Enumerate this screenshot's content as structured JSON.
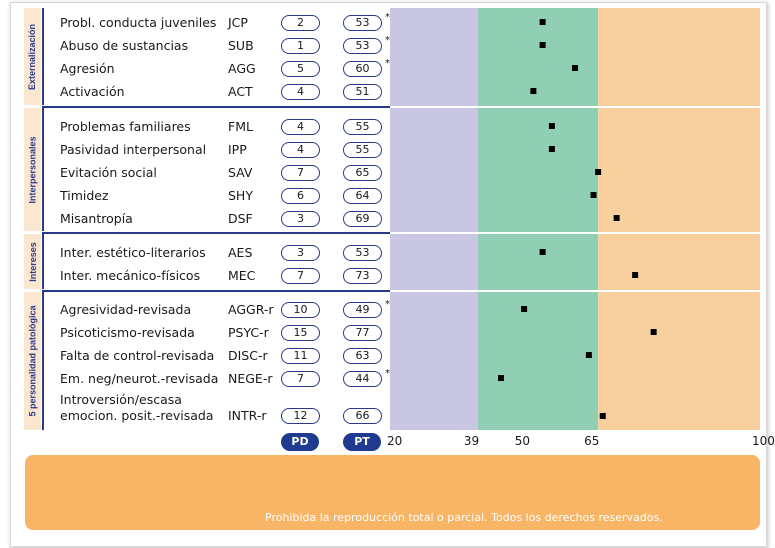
{
  "chart_data": {
    "type": "scatter",
    "title": "",
    "axis": {
      "min": 20,
      "max": 100,
      "ticks": [
        {
          "value": 20,
          "label": "20"
        },
        {
          "value": 39,
          "label": "39"
        },
        {
          "value": 50,
          "label": "50"
        },
        {
          "value": 65,
          "label": "65"
        },
        {
          "value": 100,
          "label": "100"
        }
      ]
    },
    "bands": [
      {
        "from": 20,
        "to": 39,
        "color": "#c9c6e3"
      },
      {
        "from": 39,
        "to": 65,
        "color": "#91cfb4"
      },
      {
        "from": 65,
        "to": 100,
        "color": "#f8d0a0"
      }
    ],
    "columns": {
      "pd": "PD",
      "pt": "PT"
    },
    "sections": [
      {
        "label": "Externalización",
        "rows": [
          {
            "name": "Probl. conducta juveniles",
            "code": "JCP",
            "pd": "2",
            "pt": "53",
            "flag": "*",
            "value": 53
          },
          {
            "name": "Abuso de sustancias",
            "code": "SUB",
            "pd": "1",
            "pt": "53",
            "flag": "*",
            "value": 53
          },
          {
            "name": "Agresión",
            "code": "AGG",
            "pd": "5",
            "pt": "60",
            "flag": "*",
            "value": 60
          },
          {
            "name": "Activación",
            "code": "ACT",
            "pd": "4",
            "pt": "51",
            "flag": "",
            "value": 51
          }
        ]
      },
      {
        "label": "Interpersonales",
        "rows": [
          {
            "name": "Problemas familiares",
            "code": "FML",
            "pd": "4",
            "pt": "55",
            "flag": "",
            "value": 55
          },
          {
            "name": "Pasividad interpersonal",
            "code": "IPP",
            "pd": "4",
            "pt": "55",
            "flag": "",
            "value": 55
          },
          {
            "name": "Evitación social",
            "code": "SAV",
            "pd": "7",
            "pt": "65",
            "flag": "",
            "value": 65
          },
          {
            "name": "Timidez",
            "code": "SHY",
            "pd": "6",
            "pt": "64",
            "flag": "",
            "value": 64
          },
          {
            "name": "Misantropía",
            "code": "DSF",
            "pd": "3",
            "pt": "69",
            "flag": "",
            "value": 69
          }
        ]
      },
      {
        "label": "Intereses",
        "rows": [
          {
            "name": "Inter. estético-literarios",
            "code": "AES",
            "pd": "3",
            "pt": "53",
            "flag": "",
            "value": 53
          },
          {
            "name": "Inter. mecánico-físicos",
            "code": "MEC",
            "pd": "7",
            "pt": "73",
            "flag": "",
            "value": 73
          }
        ]
      },
      {
        "label": "5 personalidad patológica",
        "rows": [
          {
            "name": "Agresividad-revisada",
            "code": "AGGR-r",
            "pd": "10",
            "pt": "49",
            "flag": "*",
            "value": 49
          },
          {
            "name": "Psicoticismo-revisada",
            "code": "PSYC-r",
            "pd": "15",
            "pt": "77",
            "flag": "",
            "value": 77
          },
          {
            "name": "Falta de control-revisada",
            "code": "DISC-r",
            "pd": "11",
            "pt": "63",
            "flag": "",
            "value": 63
          },
          {
            "name": "Em. neg/neurot.-revisada",
            "code": "NEGE-r",
            "pd": "7",
            "pt": "44",
            "flag": "*",
            "value": 44
          },
          {
            "name": "Introversión/escasa emocion. posit.-revisada",
            "name_line1": "Introversión/escasa",
            "name_line2": "emocion. posit.-revisada",
            "code": "INTR-r",
            "pd": "12",
            "pt": "66",
            "flag": "",
            "value": 66
          }
        ]
      }
    ]
  },
  "footer": {
    "copyright": "Prohibida la reproducción total o parcial. Todos los derechos reservados."
  }
}
